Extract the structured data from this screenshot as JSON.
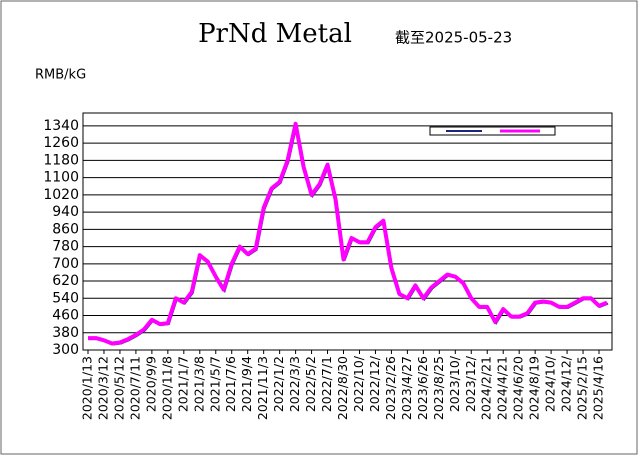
{
  "chart_data": {
    "type": "line",
    "title": "PrNd Metal",
    "subtitle": "截至2025-05-23",
    "y_label": "RMB/kG",
    "categories": [
      "2020/1/13",
      null,
      "2020/3/12",
      null,
      "2020/5/12",
      null,
      "2020/7/11",
      null,
      "2020/9/9",
      null,
      "2020/11/8",
      null,
      "2021/1/7",
      null,
      "2021/3/8",
      null,
      "2021/5/7",
      null,
      "2021/7/6",
      null,
      "2021/9/4",
      null,
      "2021/11/3",
      null,
      "2022/1/2",
      null,
      "2022/3/3",
      null,
      "2022/5/2",
      null,
      "2022/7/1",
      null,
      "2022/8/30",
      null,
      "2022/10/",
      null,
      "2022/12/",
      null,
      "2023/2/26",
      null,
      "2023/4/27",
      null,
      "2023/6/26",
      null,
      "2023/8/25",
      null,
      "2023/10/",
      null,
      "2023/12/",
      null,
      "2024/2/21",
      null,
      "2024/4/21",
      null,
      "2024/6/20",
      null,
      "2024/8/19",
      null,
      "2024/10/",
      null,
      "2024/12/",
      null,
      "2025/2/15",
      null,
      "2025/4/16",
      null
    ],
    "series": [
      {
        "color": "#ff00ff",
        "values": [
          355,
          355,
          345,
          330,
          335,
          350,
          370,
          395,
          440,
          420,
          425,
          540,
          520,
          570,
          740,
          710,
          640,
          580,
          700,
          780,
          745,
          770,
          960,
          1050,
          1080,
          1180,
          1350,
          1150,
          1020,
          1070,
          1160,
          1000,
          720,
          820,
          800,
          800,
          870,
          900,
          680,
          560,
          540,
          600,
          540,
          590,
          620,
          650,
          640,
          610,
          540,
          500,
          500,
          430,
          490,
          455,
          455,
          470,
          520,
          525,
          520,
          500,
          500,
          520,
          540,
          540,
          505,
          520
        ]
      }
    ],
    "ylim": [
      300,
      1400
    ],
    "yticks": [
      300,
      380,
      460,
      540,
      620,
      700,
      780,
      860,
      940,
      1020,
      1100,
      1180,
      1260,
      1340
    ],
    "grid": true
  }
}
